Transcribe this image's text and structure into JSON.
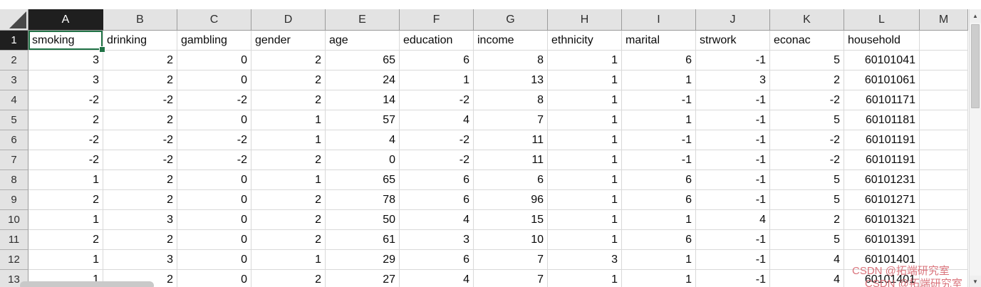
{
  "sheet": {
    "columns": [
      "A",
      "B",
      "C",
      "D",
      "E",
      "F",
      "G",
      "H",
      "I",
      "J",
      "K",
      "L",
      "M"
    ],
    "selection": {
      "cell": "A1",
      "column": "A",
      "row": "1",
      "value": "smoking"
    },
    "rows": [
      {
        "n": "1",
        "align": "left",
        "cells": [
          "smoking",
          "drinking",
          "gambling",
          "gender",
          "age",
          "education",
          "income",
          "ethnicity",
          "marital",
          "strwork",
          "econac",
          "household",
          ""
        ]
      },
      {
        "n": "2",
        "align": "right",
        "cells": [
          "3",
          "2",
          "0",
          "2",
          "65",
          "6",
          "8",
          "1",
          "6",
          "-1",
          "5",
          "60101041",
          ""
        ]
      },
      {
        "n": "3",
        "align": "right",
        "cells": [
          "3",
          "2",
          "0",
          "2",
          "24",
          "1",
          "13",
          "1",
          "1",
          "3",
          "2",
          "60101061",
          ""
        ]
      },
      {
        "n": "4",
        "align": "right",
        "cells": [
          "-2",
          "-2",
          "-2",
          "2",
          "14",
          "-2",
          "8",
          "1",
          "-1",
          "-1",
          "-2",
          "60101171",
          ""
        ]
      },
      {
        "n": "5",
        "align": "right",
        "cells": [
          "2",
          "2",
          "0",
          "1",
          "57",
          "4",
          "7",
          "1",
          "1",
          "-1",
          "5",
          "60101181",
          ""
        ]
      },
      {
        "n": "6",
        "align": "right",
        "cells": [
          "-2",
          "-2",
          "-2",
          "1",
          "4",
          "-2",
          "11",
          "1",
          "-1",
          "-1",
          "-2",
          "60101191",
          ""
        ]
      },
      {
        "n": "7",
        "align": "right",
        "cells": [
          "-2",
          "-2",
          "-2",
          "2",
          "0",
          "-2",
          "11",
          "1",
          "-1",
          "-1",
          "-2",
          "60101191",
          ""
        ]
      },
      {
        "n": "8",
        "align": "right",
        "cells": [
          "1",
          "2",
          "0",
          "1",
          "65",
          "6",
          "6",
          "1",
          "6",
          "-1",
          "5",
          "60101231",
          ""
        ]
      },
      {
        "n": "9",
        "align": "right",
        "cells": [
          "2",
          "2",
          "0",
          "2",
          "78",
          "6",
          "96",
          "1",
          "6",
          "-1",
          "5",
          "60101271",
          ""
        ]
      },
      {
        "n": "10",
        "align": "right",
        "cells": [
          "1",
          "3",
          "0",
          "2",
          "50",
          "4",
          "15",
          "1",
          "1",
          "4",
          "2",
          "60101321",
          ""
        ]
      },
      {
        "n": "11",
        "align": "right",
        "cells": [
          "2",
          "2",
          "0",
          "2",
          "61",
          "3",
          "10",
          "1",
          "6",
          "-1",
          "5",
          "60101391",
          ""
        ]
      },
      {
        "n": "12",
        "align": "right",
        "cells": [
          "1",
          "3",
          "0",
          "1",
          "29",
          "6",
          "7",
          "3",
          "1",
          "-1",
          "4",
          "60101401",
          ""
        ]
      },
      {
        "n": "13",
        "align": "right",
        "cells": [
          "1",
          "2",
          "0",
          "2",
          "27",
          "4",
          "7",
          "1",
          "1",
          "-1",
          "4",
          "60101401",
          ""
        ]
      }
    ],
    "scrollbar": {
      "up_arrow": "▲",
      "down_arrow": "▼"
    },
    "watermark": "CSDN @拓端研究室",
    "colors": {
      "selection_border": "#217346",
      "active_header_bg": "#1f1f1f",
      "watermark": "#d6656e"
    }
  }
}
